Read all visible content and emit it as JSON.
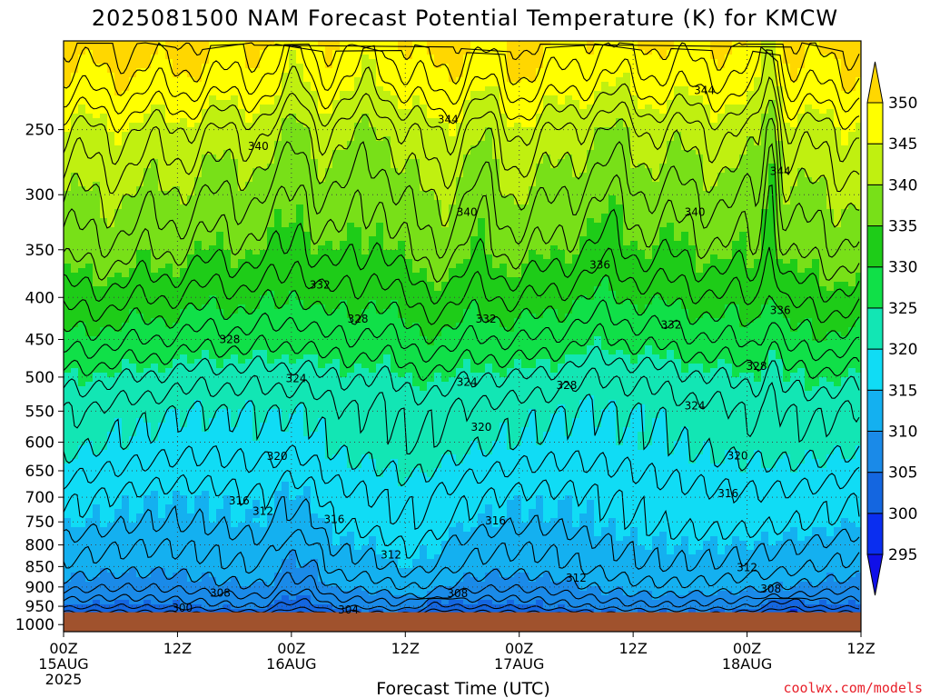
{
  "chart_data": {
    "type": "heatmap",
    "title": "2025081500 NAM Forecast Potential Temperature (K) for KMCW",
    "xlabel": "Forecast Time (UTC)",
    "ylabel": "",
    "y_scale": "log-pressure",
    "y_range": [
      1000,
      200
    ],
    "x_range": [
      "2025-08-15 00Z",
      "2025-08-18 12Z"
    ],
    "y_ticks": [
      250,
      300,
      350,
      400,
      450,
      500,
      550,
      600,
      650,
      700,
      750,
      800,
      850,
      900,
      950,
      1000
    ],
    "x_ticks": [
      {
        "hour": 0,
        "line1": "00Z",
        "line2": "15AUG",
        "line3": "2025"
      },
      {
        "hour": 12,
        "line1": "12Z",
        "line2": "",
        "line3": ""
      },
      {
        "hour": 24,
        "line1": "00Z",
        "line2": "16AUG",
        "line3": ""
      },
      {
        "hour": 36,
        "line1": "12Z",
        "line2": "",
        "line3": ""
      },
      {
        "hour": 48,
        "line1": "00Z",
        "line2": "17AUG",
        "line3": ""
      },
      {
        "hour": 60,
        "line1": "12Z",
        "line2": "",
        "line3": ""
      },
      {
        "hour": 72,
        "line1": "00Z",
        "line2": "18AUG",
        "line3": ""
      },
      {
        "hour": 84,
        "line1": "12Z",
        "line2": "",
        "line3": ""
      }
    ],
    "grid": true,
    "colorbar": {
      "levels": [
        295,
        300,
        305,
        310,
        315,
        320,
        325,
        330,
        335,
        340,
        345,
        350
      ],
      "colors": [
        "#1010e8",
        "#0a2ef0",
        "#1466e0",
        "#1a8ae8",
        "#14b0f0",
        "#10dcf5",
        "#12e6b4",
        "#10e048",
        "#1ecc18",
        "#78e018",
        "#c0f010",
        "#ffff00",
        "#ffd700"
      ]
    },
    "surface_pressure_hPa": 966,
    "surface_color": "#a0522d",
    "contour_interval": 2,
    "contour_labels": [
      {
        "hour": 20.5,
        "p": 262,
        "theta": 340
      },
      {
        "hour": 40.5,
        "p": 243,
        "theta": 344
      },
      {
        "hour": 67.5,
        "p": 224,
        "theta": 344
      },
      {
        "hour": 75.5,
        "p": 281,
        "theta": 344
      },
      {
        "hour": 42.5,
        "p": 315,
        "theta": 340
      },
      {
        "hour": 66.5,
        "p": 315,
        "theta": 340
      },
      {
        "hour": 56.5,
        "p": 365,
        "theta": 336
      },
      {
        "hour": 75.5,
        "p": 415,
        "theta": 336
      },
      {
        "hour": 27.0,
        "p": 386,
        "theta": 332
      },
      {
        "hour": 44.5,
        "p": 425,
        "theta": 332
      },
      {
        "hour": 64.0,
        "p": 432,
        "theta": 332
      },
      {
        "hour": 31.0,
        "p": 425,
        "theta": 328
      },
      {
        "hour": 17.5,
        "p": 450,
        "theta": 328
      },
      {
        "hour": 53.0,
        "p": 512,
        "theta": 328
      },
      {
        "hour": 73.0,
        "p": 485,
        "theta": 328
      },
      {
        "hour": 24.5,
        "p": 502,
        "theta": 324
      },
      {
        "hour": 42.5,
        "p": 507,
        "theta": 324
      },
      {
        "hour": 66.5,
        "p": 542,
        "theta": 324
      },
      {
        "hour": 44.0,
        "p": 575,
        "theta": 320
      },
      {
        "hour": 22.5,
        "p": 624,
        "theta": 320
      },
      {
        "hour": 71.0,
        "p": 623,
        "theta": 320
      },
      {
        "hour": 18.5,
        "p": 707,
        "theta": 316
      },
      {
        "hour": 28.5,
        "p": 745,
        "theta": 316
      },
      {
        "hour": 45.5,
        "p": 748,
        "theta": 316
      },
      {
        "hour": 70.0,
        "p": 693,
        "theta": 316
      },
      {
        "hour": 21.0,
        "p": 728,
        "theta": 312
      },
      {
        "hour": 34.5,
        "p": 823,
        "theta": 312
      },
      {
        "hour": 54.0,
        "p": 878,
        "theta": 312
      },
      {
        "hour": 72.0,
        "p": 852,
        "theta": 312
      },
      {
        "hour": 16.5,
        "p": 915,
        "theta": 308
      },
      {
        "hour": 41.5,
        "p": 917,
        "theta": 308
      },
      {
        "hour": 74.5,
        "p": 905,
        "theta": 308
      },
      {
        "hour": 12.5,
        "p": 955,
        "theta": 300
      },
      {
        "hour": 30.0,
        "p": 960,
        "theta": 304
      }
    ]
  },
  "credit": "coolwx.com/models",
  "credit_color": "#e8202a"
}
